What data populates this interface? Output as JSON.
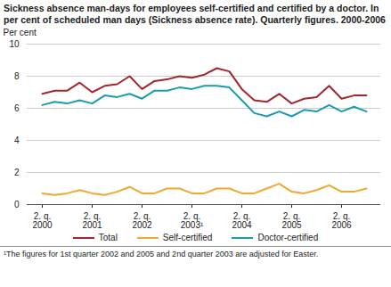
{
  "chart_data": {
    "type": "line",
    "title": "Sickness absence man-days for employees self-certified and certified by a doctor. In per cent of scheduled man days (Sickness absence rate). Quarterly figures. 2000-2006",
    "y_label": "Per cent",
    "footnote": "¹The figures for 1st quarter 2002 and 2005 and 2nd quarter 2003 are adjusted for Easter.",
    "categories": [
      "2. q.\n2000",
      null,
      null,
      null,
      "2. q.\n2001",
      null,
      null,
      null,
      "2. q.\n2002",
      null,
      null,
      null,
      "2. q.\n2003¹",
      null,
      null,
      null,
      "2. q.\n2004",
      null,
      null,
      null,
      "2. q.\n2005",
      null,
      null,
      null,
      "2. q.\n2006",
      null,
      null
    ],
    "series": [
      {
        "name": "Total",
        "color": "#a3262e",
        "values": [
          6.9,
          7.1,
          7.1,
          7.6,
          7.0,
          7.4,
          7.5,
          8.0,
          7.2,
          7.7,
          7.8,
          8.0,
          7.9,
          8.1,
          8.5,
          8.3,
          7.2,
          6.5,
          6.4,
          6.9,
          6.3,
          6.6,
          6.7,
          7.4,
          6.6,
          6.8,
          6.8
        ]
      },
      {
        "name": "Self-certified",
        "color": "#f0a830",
        "values": [
          0.7,
          0.6,
          0.7,
          0.9,
          0.7,
          0.6,
          0.8,
          1.1,
          0.7,
          0.7,
          1.0,
          1.0,
          0.7,
          0.7,
          1.0,
          1.0,
          0.7,
          0.7,
          1.0,
          1.3,
          0.8,
          0.7,
          0.9,
          1.2,
          0.8,
          0.8,
          1.0
        ]
      },
      {
        "name": "Doctor-certified",
        "color": "#1a9bb0",
        "values": [
          6.2,
          6.4,
          6.3,
          6.5,
          6.3,
          6.8,
          6.7,
          6.9,
          6.6,
          7.1,
          7.1,
          7.3,
          7.2,
          7.4,
          7.4,
          7.3,
          6.5,
          5.7,
          5.5,
          5.8,
          5.5,
          5.9,
          5.8,
          6.2,
          5.8,
          6.1,
          5.8
        ]
      }
    ],
    "ylim": [
      0,
      10
    ],
    "yticks": [
      0,
      2,
      4,
      6,
      8,
      10
    ],
    "grid": true,
    "legend": "bottom"
  }
}
